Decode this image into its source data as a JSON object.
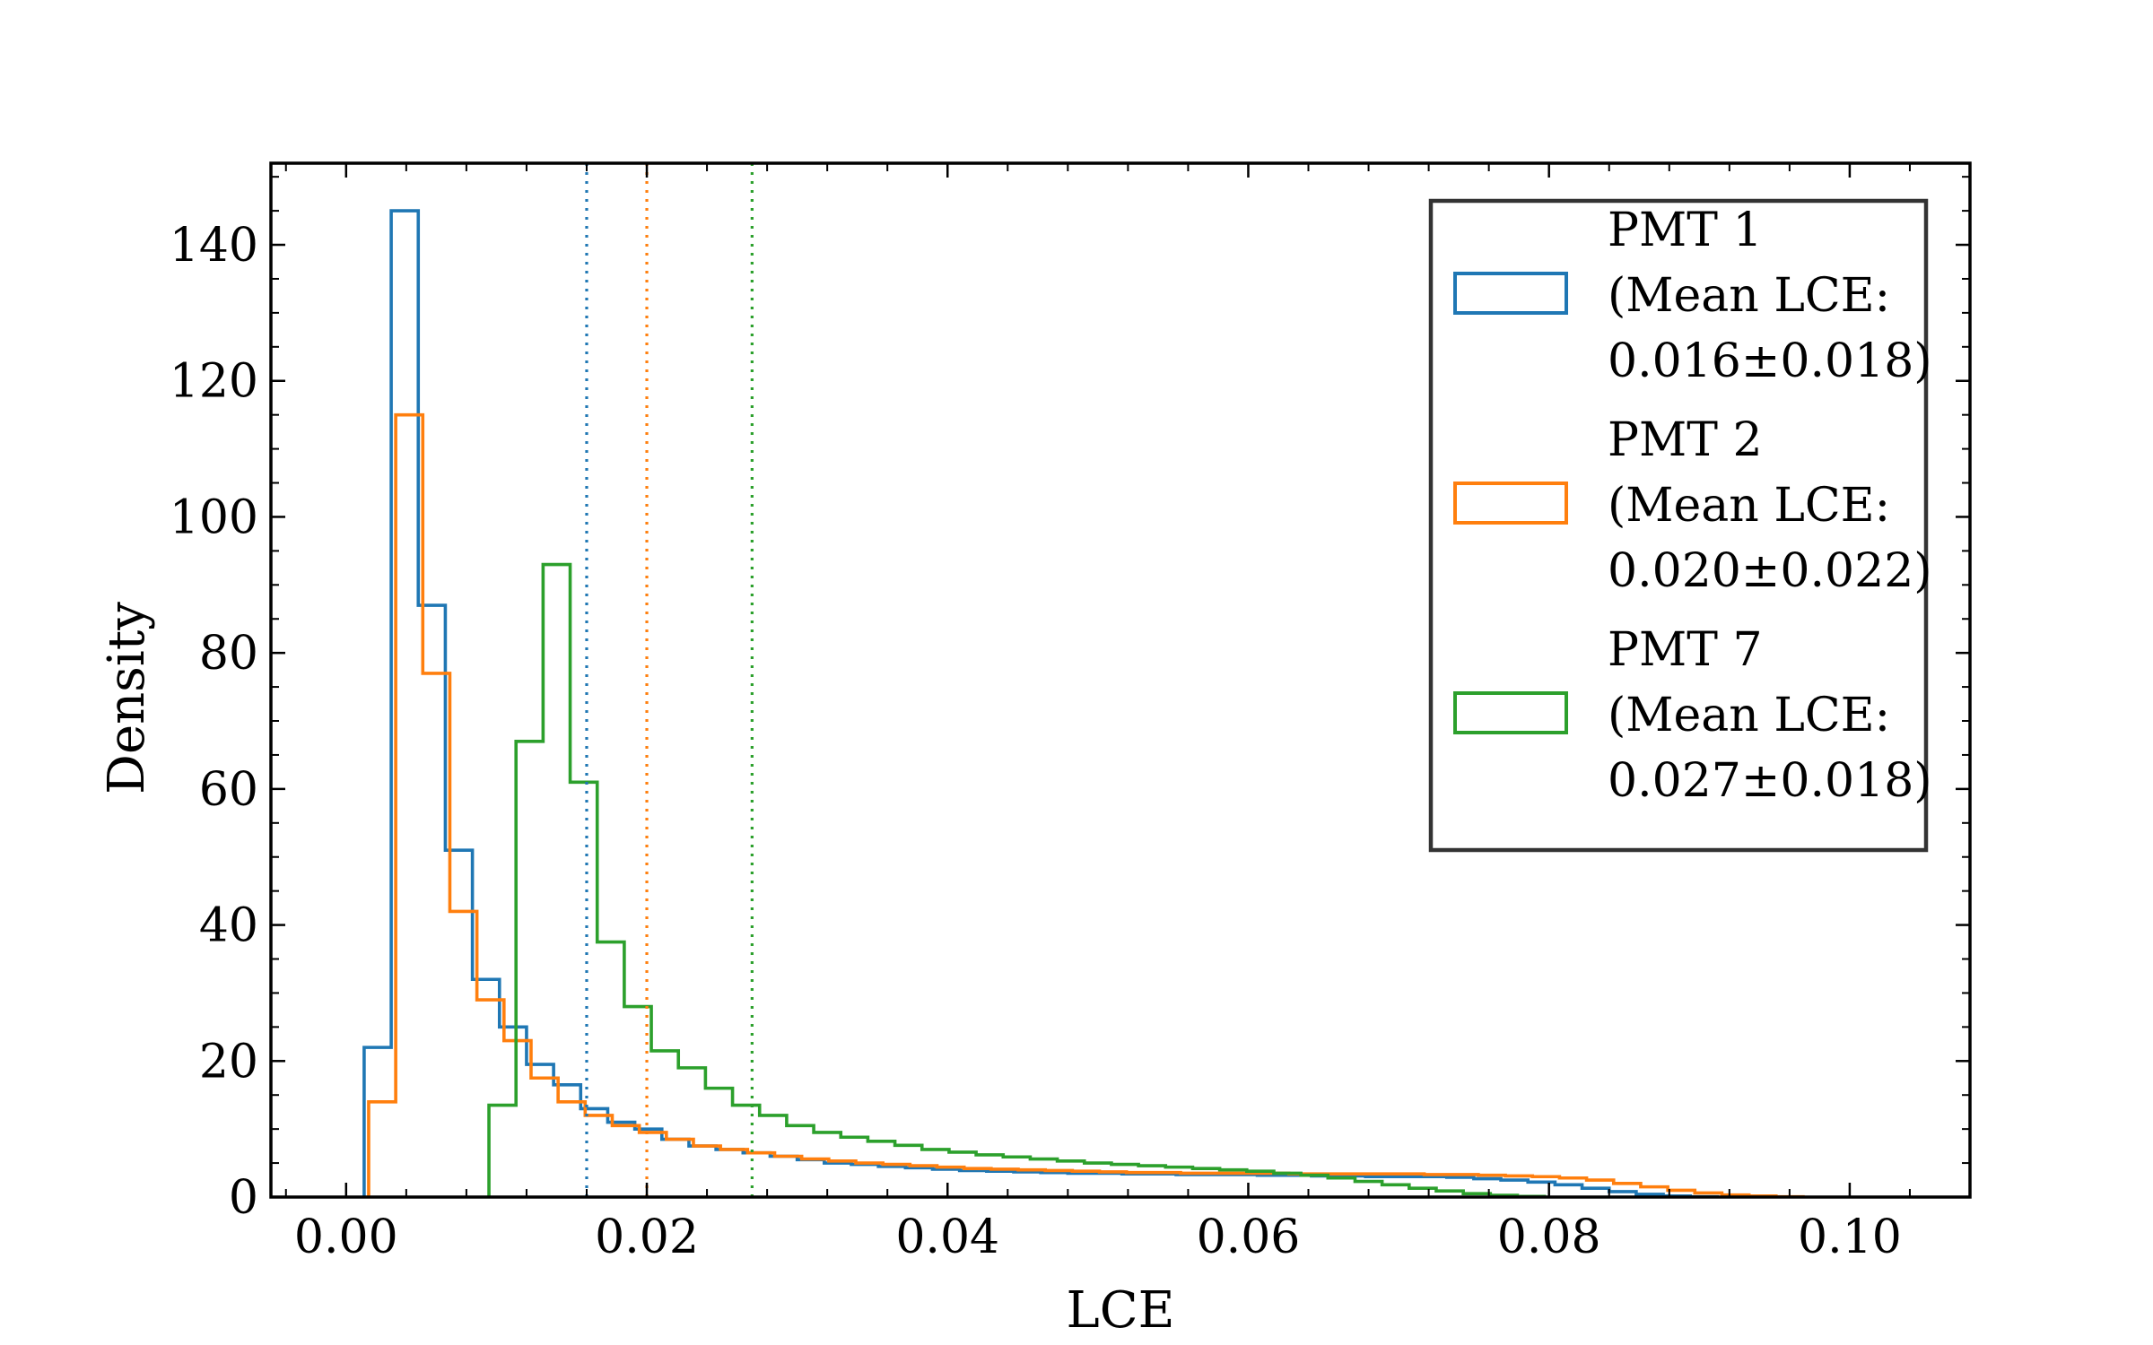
{
  "chart_data": {
    "type": "histogram",
    "xlabel": "LCE",
    "ylabel": "Density",
    "xlim": [
      -0.005,
      0.108
    ],
    "ylim": [
      0,
      152
    ],
    "grid": false,
    "legend_position": "top-right",
    "x_ticks": [
      {
        "value": 0.0,
        "label": "0.00"
      },
      {
        "value": 0.02,
        "label": "0.02"
      },
      {
        "value": 0.04,
        "label": "0.04"
      },
      {
        "value": 0.06,
        "label": "0.06"
      },
      {
        "value": 0.08,
        "label": "0.08"
      },
      {
        "value": 0.1,
        "label": "0.10"
      }
    ],
    "y_ticks": [
      {
        "value": 0,
        "label": "0"
      },
      {
        "value": 20,
        "label": "20"
      },
      {
        "value": 40,
        "label": "40"
      },
      {
        "value": 60,
        "label": "60"
      },
      {
        "value": 80,
        "label": "80"
      },
      {
        "value": 100,
        "label": "100"
      },
      {
        "value": 120,
        "label": "120"
      },
      {
        "value": 140,
        "label": "140"
      }
    ],
    "series": [
      {
        "name": "PMT 1",
        "legend_lines": [
          "PMT 1",
          "(Mean LCE:",
          "0.016±0.018)"
        ],
        "color": "#1f77b4",
        "mean": 0.016,
        "bin_start": 0.0012,
        "bin_width": 0.0018,
        "values": [
          22,
          145,
          87,
          51,
          32,
          25,
          19.5,
          16.5,
          13,
          11,
          10,
          8.5,
          7.5,
          7,
          6.5,
          6,
          5.5,
          5,
          4.8,
          4.5,
          4.3,
          4.1,
          3.9,
          3.8,
          3.7,
          3.6,
          3.5,
          3.5,
          3.4,
          3.4,
          3.3,
          3.3,
          3.3,
          3.2,
          3.2,
          3.1,
          3.1,
          3.0,
          3.0,
          3.0,
          2.9,
          2.7,
          2.5,
          2.2,
          1.8,
          1.3,
          0.8,
          0.4,
          0.15,
          0.05
        ]
      },
      {
        "name": "PMT 2",
        "legend_lines": [
          "PMT 2",
          "(Mean LCE:",
          "0.020±0.022)"
        ],
        "color": "#ff7f0e",
        "mean": 0.02,
        "bin_start": 0.0015,
        "bin_width": 0.0018,
        "values": [
          14,
          115,
          77,
          42,
          29,
          23,
          17.5,
          14,
          12,
          10.5,
          9.5,
          8.5,
          7.5,
          7,
          6.5,
          6,
          5.6,
          5.3,
          5.0,
          4.8,
          4.6,
          4.4,
          4.2,
          4.1,
          4.0,
          3.9,
          3.8,
          3.7,
          3.6,
          3.6,
          3.5,
          3.5,
          3.5,
          3.5,
          3.4,
          3.4,
          3.4,
          3.4,
          3.4,
          3.3,
          3.3,
          3.2,
          3.1,
          3.0,
          2.8,
          2.5,
          2.0,
          1.5,
          1.0,
          0.6,
          0.3,
          0.15,
          0.05
        ]
      },
      {
        "name": "PMT 7",
        "legend_lines": [
          "PMT 7",
          "(Mean LCE:",
          "0.027±0.018)"
        ],
        "color": "#2ca02c",
        "mean": 0.027,
        "bin_start": 0.0095,
        "bin_width": 0.0018,
        "values": [
          13.5,
          67,
          93,
          61,
          37.5,
          28,
          21.5,
          19,
          16,
          13.5,
          12,
          10.5,
          9.5,
          8.8,
          8.2,
          7.6,
          7.0,
          6.6,
          6.2,
          5.9,
          5.6,
          5.3,
          5.0,
          4.8,
          4.6,
          4.4,
          4.2,
          4.0,
          3.8,
          3.5,
          3.2,
          2.8,
          2.3,
          1.8,
          1.3,
          0.9,
          0.5,
          0.25,
          0.1
        ]
      }
    ]
  }
}
